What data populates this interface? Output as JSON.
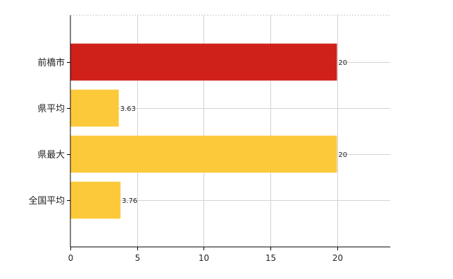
{
  "chart_data": {
    "type": "bar",
    "orientation": "horizontal",
    "categories": [
      "前橋市",
      "県平均",
      "県最大",
      "全国平均"
    ],
    "values": [
      20,
      3.63,
      20,
      3.76
    ],
    "data_labels": [
      "20",
      "3.63",
      "20",
      "3.76"
    ],
    "bar_colors": [
      "#d0201a",
      "#fcc93a",
      "#fcc93a",
      "#fcc93a"
    ],
    "xlim": [
      0,
      24
    ],
    "xticks": [
      0,
      5,
      10,
      15,
      20
    ],
    "xtick_labels": [
      "0",
      "5",
      "10",
      "15",
      "20"
    ],
    "grid": true
  }
}
